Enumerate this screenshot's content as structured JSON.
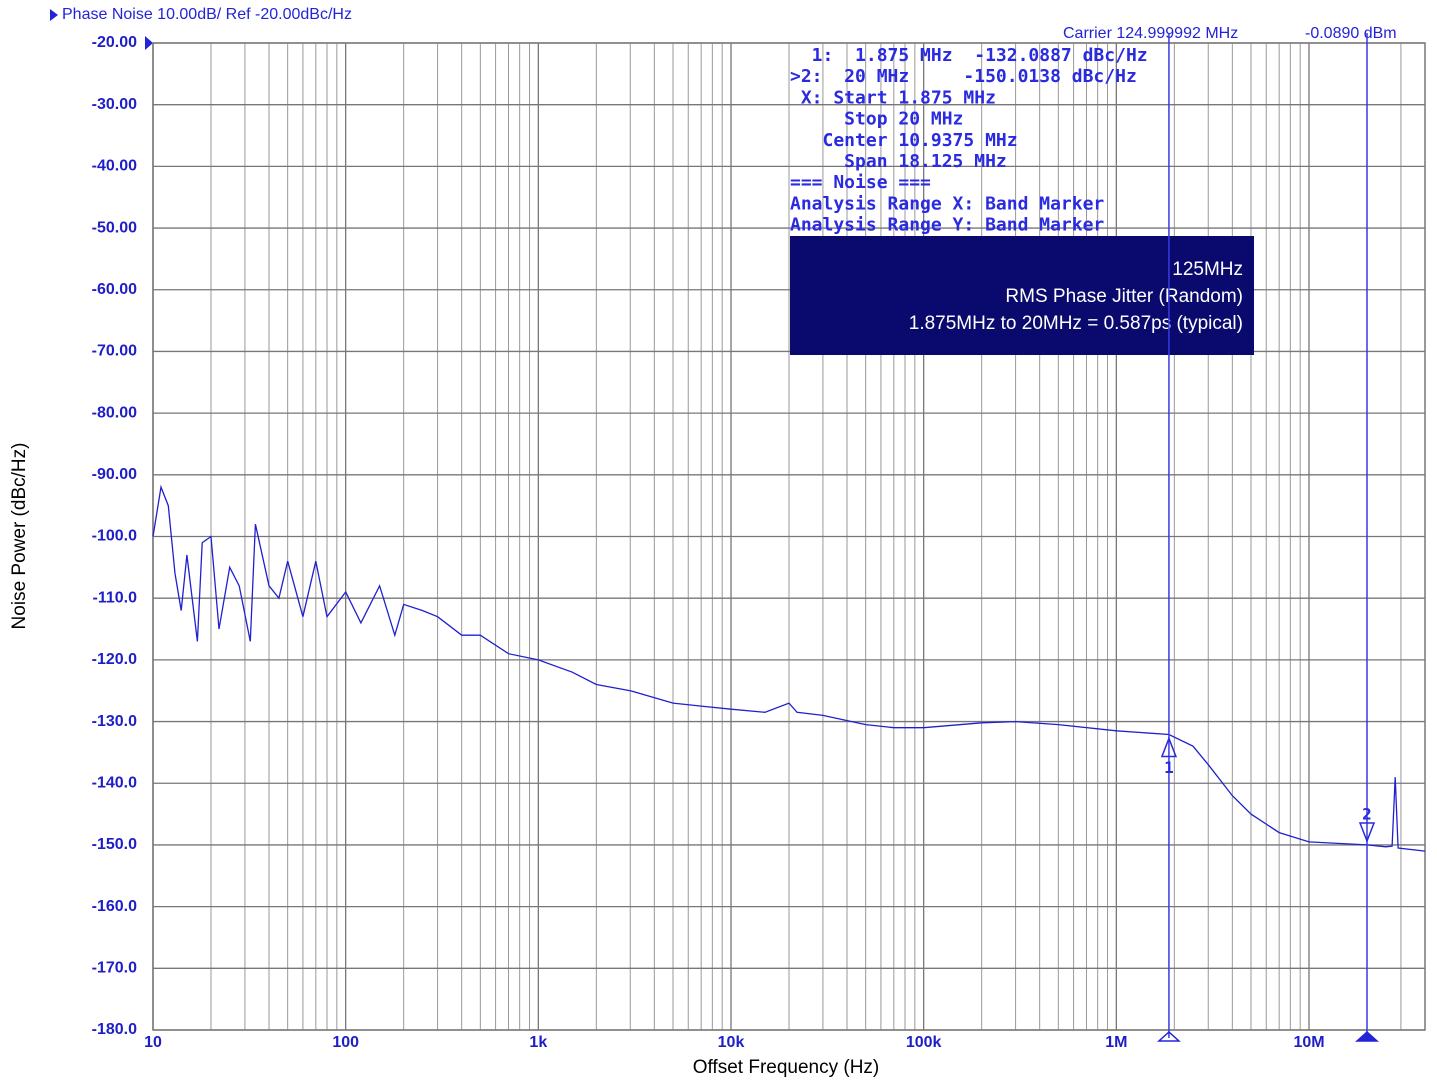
{
  "chart_data": {
    "type": "line",
    "title": "Phase Noise 10.00dB/ Ref -20.00dBc/Hz",
    "carrier": "Carrier 124.999992 MHz",
    "carrier_power": "-0.0890 dBm",
    "x_label": "Offset Frequency (Hz)",
    "y_label": "Noise Power (dBc/Hz)",
    "x_scale": "log",
    "grid": true,
    "xlim": [
      10,
      40000000
    ],
    "ylim": [
      -180,
      -20
    ],
    "xticks": [
      10,
      100,
      {
        "value": 1000,
        "label": "1k"
      },
      {
        "value": 10000,
        "label": "10k"
      },
      {
        "value": 100000,
        "label": "100k"
      },
      {
        "value": 1000000,
        "label": "1M"
      },
      {
        "value": 10000000,
        "label": "10M"
      }
    ],
    "xminor": [
      20,
      30,
      40,
      50,
      60,
      70,
      80,
      90,
      200,
      300,
      400,
      500,
      600,
      700,
      800,
      900,
      2000,
      3000,
      4000,
      5000,
      6000,
      7000,
      8000,
      9000,
      20000,
      30000,
      40000,
      50000,
      60000,
      70000,
      80000,
      90000,
      200000,
      300000,
      400000,
      500000,
      600000,
      700000,
      800000,
      900000,
      2000000,
      3000000,
      4000000,
      5000000,
      6000000,
      7000000,
      8000000,
      9000000,
      20000000,
      30000000
    ],
    "yticks": [
      {
        "value": -20,
        "label": "-20.00"
      },
      {
        "value": -30,
        "label": "-30.00"
      },
      {
        "value": -40,
        "label": "-40.00"
      },
      {
        "value": -50,
        "label": "-50.00"
      },
      {
        "value": -60,
        "label": "-60.00"
      },
      {
        "value": -70,
        "label": "-70.00"
      },
      {
        "value": -80,
        "label": "-80.00"
      },
      {
        "value": -90,
        "label": "-90.00"
      },
      {
        "value": -100,
        "label": "-100.0"
      },
      {
        "value": -110,
        "label": "-110.0"
      },
      {
        "value": -120,
        "label": "-120.0"
      },
      {
        "value": -130,
        "label": "-130.0"
      },
      {
        "value": -140,
        "label": "-140.0"
      },
      {
        "value": -150,
        "label": "-150.0"
      },
      {
        "value": -160,
        "label": "-160.0"
      },
      {
        "value": -170,
        "label": "-170.0"
      },
      {
        "value": -180,
        "label": "-180.0"
      }
    ],
    "series": [
      {
        "color": "#2020d0",
        "x": [
          10,
          11,
          12,
          13,
          14,
          15,
          17,
          18,
          20,
          22,
          25,
          28,
          32,
          34,
          40,
          45,
          50,
          60,
          70,
          80,
          100,
          120,
          150,
          180,
          200,
          250,
          300,
          400,
          500,
          700,
          1000,
          1500,
          2000,
          3000,
          5000,
          7000,
          10000,
          15000,
          20000,
          22000,
          30000,
          50000,
          70000,
          100000,
          200000,
          300000,
          500000,
          1000000,
          1875000,
          2500000,
          3000000,
          4000000,
          5000000,
          7000000,
          10000000,
          20000000,
          25000000,
          27000000,
          28000000,
          29000000,
          40000000
        ],
        "values": [
          -100,
          -92,
          -95,
          -106,
          -112,
          -103,
          -117,
          -101,
          -100,
          -115,
          -105,
          -108,
          -117,
          -98,
          -108,
          -110,
          -104,
          -113,
          -104,
          -113,
          -109,
          -114,
          -108,
          -116,
          -111,
          -112,
          -113,
          -116,
          -116,
          -119,
          -120,
          -122,
          -124,
          -125,
          -127,
          -127.5,
          -128,
          -128.5,
          -127,
          -128.5,
          -129,
          -130.5,
          -131,
          -131,
          -130.2,
          -130,
          -130.5,
          -131.5,
          -132.1,
          -134,
          -137,
          -142,
          -145,
          -148,
          -149.5,
          -150,
          -150.3,
          -150.2,
          -139,
          -150.5,
          -151
        ]
      }
    ],
    "markers": [
      {
        "label": "1",
        "x": 1875000,
        "value": -132.0887
      },
      {
        "label": "2",
        "x": 20000000,
        "value": -150.0138
      }
    ],
    "readout": [
      "  1:  1.875 MHz  -132.0887 dBc/Hz",
      ">2:  20 MHz     -150.0138 dBc/Hz",
      " X: Start 1.875 MHz",
      "     Stop 20 MHz",
      "   Center 10.9375 MHz",
      "     Span 18.125 MHz",
      "=== Noise ===",
      "Analysis Range X: Band Marker",
      "Analysis Range Y: Band Marker"
    ],
    "annotation": [
      "125MHz",
      "RMS Phase Jitter (Random)",
      "1.875MHz to 20MHz = 0.587ps (typical)"
    ]
  }
}
